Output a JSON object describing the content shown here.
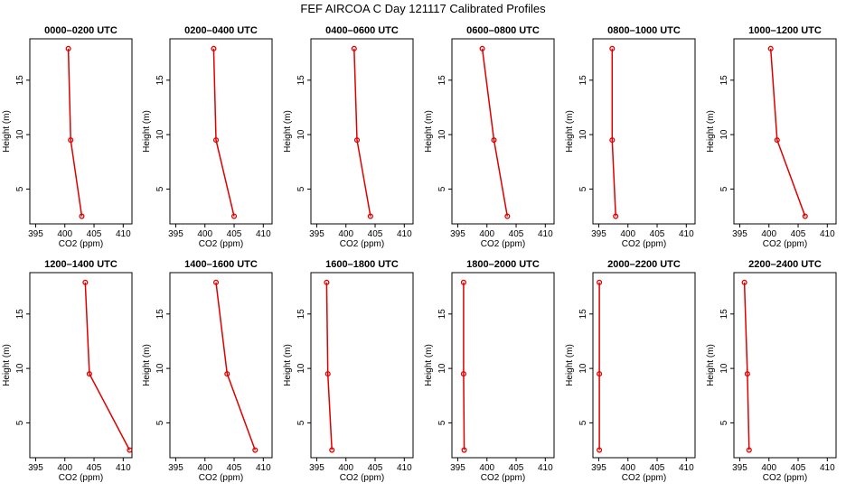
{
  "title": "FEF AIRCOA C  Day 121117  Calibrated Profiles",
  "chart_data": {
    "type": "line",
    "layout": "2x6 panel grid",
    "xlabel": "CO2 (ppm)",
    "ylabel": "Height (m)",
    "xlim": [
      394,
      411.5
    ],
    "ylim": [
      1.8,
      18.8
    ],
    "xticks": [
      395,
      400,
      405,
      410
    ],
    "yticks": [
      5,
      10,
      15
    ],
    "heights": [
      17.9,
      9.5,
      2.5
    ],
    "panels": [
      {
        "title": "0000–0200 UTC",
        "co2": [
          400.6,
          401.0,
          402.9
        ]
      },
      {
        "title": "0200–0400 UTC",
        "co2": [
          401.5,
          401.9,
          405.0
        ]
      },
      {
        "title": "0400–0600 UTC",
        "co2": [
          401.4,
          401.9,
          404.2
        ]
      },
      {
        "title": "0600–0800 UTC",
        "co2": [
          399.2,
          401.2,
          403.5
        ]
      },
      {
        "title": "0800–1000 UTC",
        "co2": [
          397.3,
          397.3,
          397.9
        ]
      },
      {
        "title": "1000–1200 UTC",
        "co2": [
          400.3,
          401.4,
          406.2
        ]
      },
      {
        "title": "1200–1400 UTC",
        "co2": [
          403.5,
          404.2,
          411.1
        ]
      },
      {
        "title": "1400–1600 UTC",
        "co2": [
          401.9,
          403.8,
          408.6
        ]
      },
      {
        "title": "1600–1800 UTC",
        "co2": [
          396.7,
          396.9,
          397.6
        ]
      },
      {
        "title": "1800–2000 UTC",
        "co2": [
          396.0,
          396.0,
          396.1
        ]
      },
      {
        "title": "2000–2200 UTC",
        "co2": [
          395.1,
          395.1,
          395.1
        ]
      },
      {
        "title": "2200–2400 UTC",
        "co2": [
          395.8,
          396.3,
          396.6
        ]
      }
    ]
  }
}
